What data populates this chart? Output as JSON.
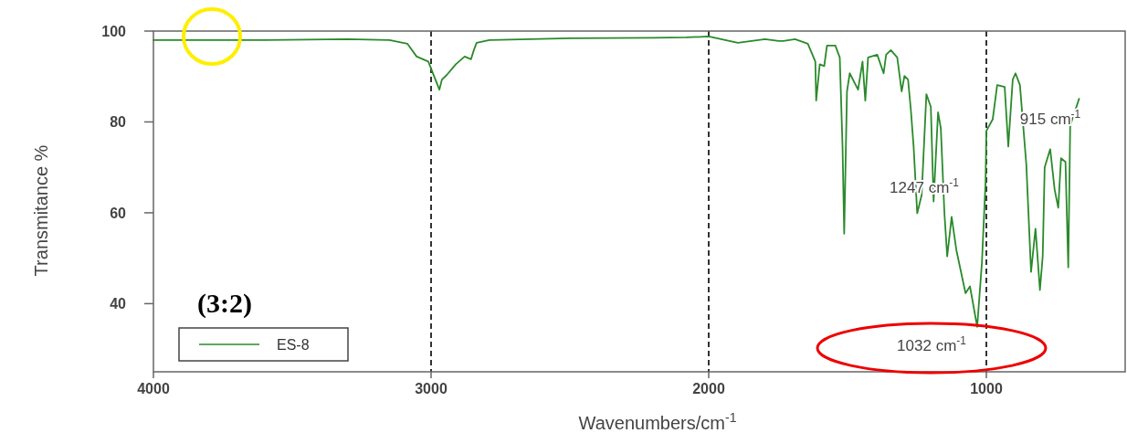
{
  "chart_data": {
    "type": "line",
    "xlabel": "Wavenumbers/cm$^{-1}$",
    "ylabel": "Transmitance %",
    "xlim": [
      4000,
      500
    ],
    "ylim": [
      25,
      100
    ],
    "xticks": [
      4000,
      3000,
      2000,
      1000
    ],
    "yticks": [
      40,
      60,
      80,
      100
    ],
    "legend": "bottom left",
    "line_style": "solid",
    "series": [
      {
        "name": "ES-8",
        "color": "#2a8a2a",
        "x": [
          4000,
          3600,
          3300,
          3150,
          3085,
          3052,
          3010,
          2970,
          2961,
          2944,
          2911,
          2879,
          2856,
          2846,
          2836,
          2790,
          2500,
          2200,
          2082,
          2000,
          1895,
          1797,
          1748,
          1731,
          1689,
          1643,
          1616,
          1613,
          1600,
          1584,
          1574,
          1544,
          1528,
          1518,
          1512,
          1502,
          1492,
          1462,
          1446,
          1436,
          1426,
          1393,
          1370,
          1361,
          1344,
          1321,
          1305,
          1295,
          1282,
          1272,
          1262,
          1249,
          1233,
          1216,
          1200,
          1190,
          1174,
          1164,
          1151,
          1141,
          1125,
          1108,
          1075,
          1059,
          1033,
          1016,
          1003,
          1000,
          977,
          961,
          934,
          921,
          905,
          895,
          879,
          856,
          839,
          823,
          807,
          797,
          790,
          770,
          754,
          741,
          731,
          715,
          705,
          698,
          666
        ],
        "values": [
          98,
          98,
          98.2,
          98,
          97.2,
          94.4,
          93.3,
          87.1,
          89.3,
          90.3,
          92.7,
          94.4,
          93.8,
          95.8,
          97.4,
          98,
          98.4,
          98.5,
          98.6,
          98.8,
          97.4,
          98.2,
          97.8,
          97.8,
          98.2,
          97.2,
          93.3,
          84.7,
          92.7,
          92.3,
          96.8,
          96.8,
          94.2,
          74.6,
          55.4,
          86.7,
          90.7,
          87.1,
          93.3,
          84.7,
          94.2,
          94.8,
          90.7,
          94.8,
          95.8,
          94.2,
          86.7,
          90.1,
          89.3,
          82.7,
          74.6,
          59.9,
          63.9,
          86.1,
          83.3,
          62.5,
          82.1,
          78.6,
          59.9,
          50.4,
          59.1,
          51.8,
          42.3,
          43.8,
          34.9,
          49,
          66.5,
          78,
          80.6,
          88.1,
          87.7,
          74.6,
          89.3,
          90.7,
          88.1,
          70.6,
          47,
          56.5,
          43,
          50.4,
          70,
          74,
          65.1,
          61.1,
          72,
          71.2,
          48,
          79.2,
          85.1
        ]
      }
    ],
    "ref_lines": [
      {
        "axis": "x",
        "value": 3000,
        "color": "#333333",
        "line_style": "dashed"
      },
      {
        "axis": "x",
        "value": 2000,
        "color": "#333333",
        "line_style": "dashed"
      },
      {
        "axis": "x",
        "value": 1000,
        "color": "#333333",
        "line_style": "dashed"
      }
    ],
    "annotations": [
      "(3:2)",
      "1247 cm$^{-1}$",
      "915 cm$^{-1}$",
      "1032 cm$^{-1}$"
    ]
  }
}
